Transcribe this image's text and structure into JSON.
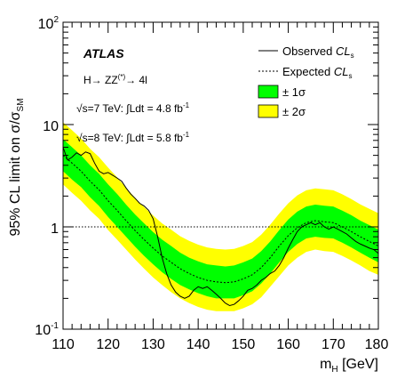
{
  "chart_data": {
    "type": "line",
    "title": "",
    "xlabel": "m_H [GeV]",
    "ylabel": "95% CL limit on σ/σ_SM",
    "xlim": [
      110,
      180
    ],
    "ylim": [
      0.1,
      100
    ],
    "y_scale": "log",
    "grid": false,
    "legend_position": "top-right",
    "x_ticks": [
      "110",
      "120",
      "130",
      "140",
      "150",
      "160",
      "170",
      "180"
    ],
    "y_ticks": [
      "10^-1",
      "1",
      "10",
      "10^2"
    ],
    "annotations": {
      "experiment": "ATLAS",
      "process": "H→ ZZ(*)→ 4l",
      "lumi_7": "√s=7 TeV: ∫Ldt = 4.8 fb-1",
      "lumi_8": "√s=8 TeV: ∫Ldt = 5.8 fb-1"
    },
    "reference_line": 1,
    "legend": {
      "observed": "Observed CLs",
      "expected": "Expected CLs",
      "band1": "± 1σ",
      "band2": "± 2σ"
    },
    "colors": {
      "band1": "#00ff00",
      "band2": "#ffff00",
      "observed": "#000000",
      "expected": "#000000"
    },
    "expected": {
      "x": [
        110,
        112,
        114,
        116,
        118,
        120,
        122,
        124,
        126,
        128,
        130,
        132,
        134,
        136,
        138,
        140,
        142,
        144,
        146,
        148,
        150,
        152,
        154,
        156,
        158,
        160,
        162,
        164,
        166,
        168,
        170,
        172,
        174,
        176,
        178,
        180
      ],
      "y": [
        5.0,
        4.2,
        3.5,
        2.8,
        2.3,
        1.8,
        1.45,
        1.15,
        0.92,
        0.75,
        0.62,
        0.52,
        0.45,
        0.39,
        0.35,
        0.32,
        0.3,
        0.29,
        0.285,
        0.29,
        0.31,
        0.34,
        0.4,
        0.5,
        0.65,
        0.82,
        0.98,
        1.1,
        1.15,
        1.12,
        1.1,
        1.0,
        0.9,
        0.8,
        0.72,
        0.65
      ]
    },
    "band_1sigma_low": [
      3.5,
      2.9,
      2.45,
      1.95,
      1.6,
      1.25,
      1.0,
      0.8,
      0.64,
      0.52,
      0.43,
      0.36,
      0.31,
      0.27,
      0.245,
      0.225,
      0.21,
      0.2,
      0.2,
      0.2,
      0.215,
      0.235,
      0.28,
      0.35,
      0.45,
      0.57,
      0.68,
      0.77,
      0.8,
      0.78,
      0.77,
      0.7,
      0.63,
      0.56,
      0.5,
      0.45
    ],
    "band_1sigma_high": [
      7.2,
      6.0,
      5.0,
      4.0,
      3.3,
      2.6,
      2.1,
      1.65,
      1.32,
      1.08,
      0.89,
      0.75,
      0.65,
      0.56,
      0.5,
      0.46,
      0.43,
      0.42,
      0.41,
      0.42,
      0.45,
      0.49,
      0.58,
      0.72,
      0.93,
      1.18,
      1.41,
      1.58,
      1.65,
      1.61,
      1.58,
      1.44,
      1.3,
      1.15,
      1.04,
      0.94
    ],
    "band_2sigma_low": [
      2.6,
      2.15,
      1.8,
      1.45,
      1.2,
      0.93,
      0.75,
      0.6,
      0.48,
      0.39,
      0.32,
      0.27,
      0.23,
      0.2,
      0.18,
      0.165,
      0.155,
      0.15,
      0.15,
      0.15,
      0.16,
      0.175,
      0.205,
      0.26,
      0.33,
      0.42,
      0.5,
      0.57,
      0.6,
      0.58,
      0.57,
      0.52,
      0.47,
      0.42,
      0.37,
      0.34
    ],
    "band_2sigma_high": [
      10.5,
      8.8,
      7.3,
      5.8,
      4.8,
      3.8,
      3.05,
      2.4,
      1.92,
      1.56,
      1.29,
      1.08,
      0.94,
      0.81,
      0.73,
      0.67,
      0.63,
      0.61,
      0.6,
      0.61,
      0.65,
      0.71,
      0.84,
      1.05,
      1.35,
      1.7,
      2.03,
      2.28,
      2.38,
      2.33,
      2.28,
      2.08,
      1.87,
      1.66,
      1.5,
      1.36
    ],
    "observed": {
      "x": [
        110,
        111,
        112,
        113,
        114,
        115,
        116,
        117,
        118,
        119,
        120,
        121,
        122,
        123,
        124,
        125,
        126,
        127,
        128,
        129,
        130,
        131,
        132,
        133,
        134,
        135,
        136,
        137,
        138,
        139,
        140,
        141,
        142,
        143,
        144,
        145,
        146,
        147,
        148,
        149,
        150,
        151,
        152,
        153,
        154,
        155,
        156,
        157,
        158,
        159,
        160,
        161,
        162,
        163,
        164,
        165,
        166,
        167,
        168,
        169,
        170,
        171,
        172,
        173,
        174,
        175,
        176,
        177,
        178,
        179,
        180
      ],
      "y": [
        6.0,
        4.5,
        4.8,
        5.3,
        5.0,
        5.4,
        5.2,
        4.2,
        3.5,
        3.3,
        3.4,
        3.2,
        3.0,
        2.8,
        2.4,
        2.1,
        1.9,
        1.7,
        1.6,
        1.45,
        1.2,
        0.8,
        0.5,
        0.35,
        0.27,
        0.23,
        0.21,
        0.2,
        0.21,
        0.24,
        0.26,
        0.25,
        0.26,
        0.24,
        0.22,
        0.2,
        0.18,
        0.17,
        0.175,
        0.19,
        0.21,
        0.24,
        0.25,
        0.27,
        0.3,
        0.32,
        0.35,
        0.37,
        0.42,
        0.5,
        0.62,
        0.75,
        0.9,
        1.0,
        1.05,
        1.1,
        1.05,
        1.1,
        1.0,
        0.95,
        1.0,
        0.95,
        0.9,
        0.85,
        0.78,
        0.72,
        0.68,
        0.65,
        0.62,
        0.6,
        0.55
      ]
    }
  }
}
